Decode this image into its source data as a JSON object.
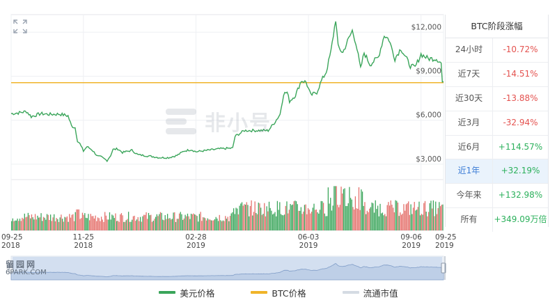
{
  "chart_data": {
    "type": "line",
    "series": [
      {
        "name": "美元价格",
        "color": "#3aa55a"
      },
      {
        "name": "BTC价格",
        "color": "#f0b429"
      },
      {
        "name": "流通市值",
        "color": "#d5dbe3"
      }
    ],
    "price_points": [
      [
        "2018-09-25",
        6450
      ],
      [
        "2018-10-01",
        6500
      ],
      [
        "2018-10-08",
        6600
      ],
      [
        "2018-10-12",
        6250
      ],
      [
        "2018-10-20",
        6450
      ],
      [
        "2018-10-28",
        6400
      ],
      [
        "2018-11-05",
        6420
      ],
      [
        "2018-11-12",
        6300
      ],
      [
        "2018-11-15",
        5600
      ],
      [
        "2018-11-18",
        5500
      ],
      [
        "2018-11-20",
        4600
      ],
      [
        "2018-11-22",
        4400
      ],
      [
        "2018-11-25",
        3900
      ],
      [
        "2018-11-28",
        4200
      ],
      [
        "2018-12-02",
        4000
      ],
      [
        "2018-12-07",
        3550
      ],
      [
        "2018-12-10",
        3500
      ],
      [
        "2018-12-15",
        3250
      ],
      [
        "2018-12-18",
        3600
      ],
      [
        "2018-12-20",
        4000
      ],
      [
        "2018-12-24",
        4050
      ],
      [
        "2018-12-28",
        3800
      ],
      [
        "2019-01-05",
        3950
      ],
      [
        "2019-01-10",
        3650
      ],
      [
        "2019-01-15",
        3600
      ],
      [
        "2019-01-20",
        3550
      ],
      [
        "2019-01-28",
        3450
      ],
      [
        "2019-02-05",
        3450
      ],
      [
        "2019-02-12",
        3600
      ],
      [
        "2019-02-18",
        3900
      ],
      [
        "2019-02-24",
        4000
      ],
      [
        "2019-02-28",
        3850
      ],
      [
        "2019-03-10",
        3950
      ],
      [
        "2019-03-20",
        4050
      ],
      [
        "2019-03-31",
        4100
      ],
      [
        "2019-04-02",
        4900
      ],
      [
        "2019-04-10",
        5300
      ],
      [
        "2019-04-20",
        5300
      ],
      [
        "2019-04-30",
        5300
      ],
      [
        "2019-05-05",
        5800
      ],
      [
        "2019-05-10",
        6400
      ],
      [
        "2019-05-13",
        7800
      ],
      [
        "2019-05-16",
        7900
      ],
      [
        "2019-05-18",
        7300
      ],
      [
        "2019-05-23",
        7700
      ],
      [
        "2019-05-28",
        8700
      ],
      [
        "2019-06-01",
        8600
      ],
      [
        "2019-06-05",
        7700
      ],
      [
        "2019-06-10",
        7900
      ],
      [
        "2019-06-14",
        8700
      ],
      [
        "2019-06-18",
        9300
      ],
      [
        "2019-06-22",
        10700
      ],
      [
        "2019-06-26",
        12900
      ],
      [
        "2019-06-28",
        11000
      ],
      [
        "2019-07-02",
        10600
      ],
      [
        "2019-07-05",
        11200
      ],
      [
        "2019-07-10",
        12100
      ],
      [
        "2019-07-13",
        11300
      ],
      [
        "2019-07-17",
        9500
      ],
      [
        "2019-07-20",
        10600
      ],
      [
        "2019-07-25",
        9800
      ],
      [
        "2019-08-01",
        10300
      ],
      [
        "2019-08-06",
        11800
      ],
      [
        "2019-08-10",
        11500
      ],
      [
        "2019-08-15",
        10200
      ],
      [
        "2019-08-20",
        10900
      ],
      [
        "2019-08-28",
        9700
      ],
      [
        "2019-09-01",
        9600
      ],
      [
        "2019-09-06",
        10500
      ],
      [
        "2019-09-12",
        10200
      ],
      [
        "2019-09-19",
        10200
      ],
      [
        "2019-09-23",
        9900
      ],
      [
        "2019-09-24",
        8600
      ],
      [
        "2019-09-25",
        8500
      ]
    ],
    "btc_price_line": 8560,
    "y_axis_ticks": [
      "$3,000",
      "$6,000",
      "$9,000",
      "$12,000"
    ],
    "y_tick_values": [
      3000,
      6000,
      9000,
      12000
    ],
    "x_axis_ticks": [
      {
        "line1": "09-25",
        "line2": "2018",
        "date": "2018-09-25"
      },
      {
        "line1": "11-25",
        "line2": "2018",
        "date": "2018-11-25"
      },
      {
        "line1": "02-28",
        "line2": "2019",
        "date": "2019-02-28"
      },
      {
        "line1": "06-03",
        "line2": "2019",
        "date": "2019-06-03"
      },
      {
        "line1": "09-06",
        "line2": "2019",
        "date": "2019-09-06"
      },
      {
        "line1": "09-25",
        "line2": "2019",
        "date": "2019-09-25"
      }
    ],
    "x_range": [
      "2018-09-25",
      "2019-09-25"
    ],
    "ylim": [
      2000,
      13200
    ],
    "volume_up_color": "#3aa55a",
    "volume_down_color": "#e46f6a"
  },
  "panel": {
    "title": "BTC阶段涨幅",
    "rows": [
      {
        "label": "24小时",
        "value": "-10.72%",
        "sign": "neg"
      },
      {
        "label": "近7天",
        "value": "-14.51%",
        "sign": "neg"
      },
      {
        "label": "近30天",
        "value": "-13.88%",
        "sign": "neg"
      },
      {
        "label": "近3月",
        "value": "-32.94%",
        "sign": "neg"
      },
      {
        "label": "近6月",
        "value": "+114.57%",
        "sign": "pos"
      },
      {
        "label": "近1年",
        "value": "+32.19%",
        "sign": "pos",
        "active": true
      },
      {
        "label": "今年来",
        "value": "+132.98%",
        "sign": "pos"
      },
      {
        "label": "所有",
        "value": "+349.09万倍",
        "sign": "pos"
      }
    ]
  },
  "legend": [
    {
      "label": "美元价格",
      "color": "#3aa55a"
    },
    {
      "label": "BTC价格",
      "color": "#f0b429"
    },
    {
      "label": "流通市值",
      "color": "#d5dbe3"
    }
  ],
  "watermark": {
    "text": "非小号"
  },
  "source_watermark": {
    "line1": "留园网",
    "line2": "6PARK.COM"
  }
}
